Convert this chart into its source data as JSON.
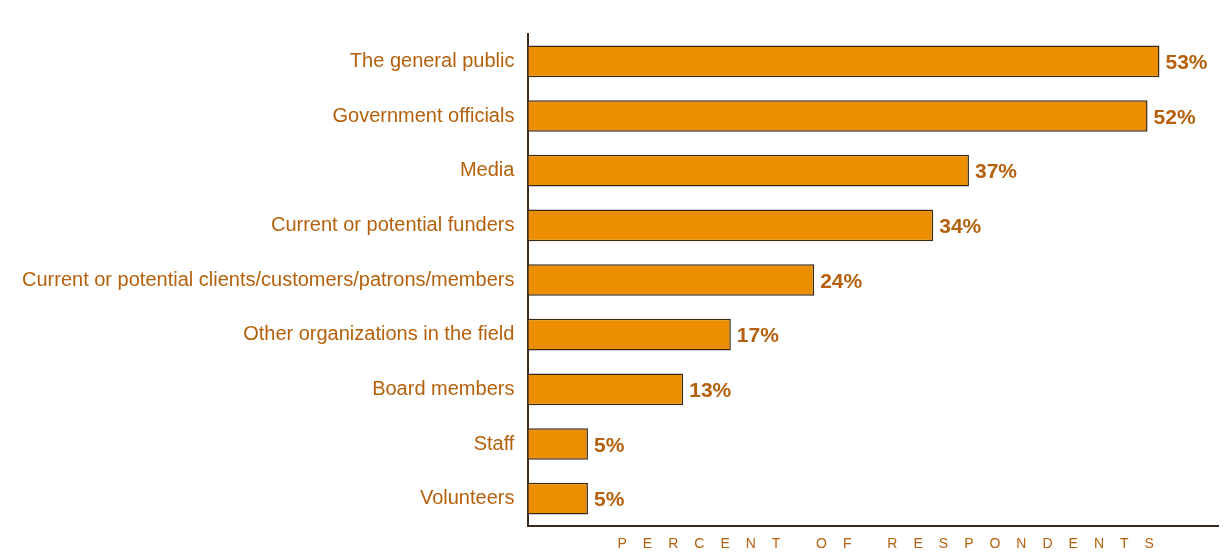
{
  "chart_data": {
    "type": "bar",
    "orientation": "horizontal",
    "xlabel": "PERCENT OF RESPONDENTS",
    "categories": [
      "The general public",
      "Government officials",
      "Media",
      "Current or potential funders",
      "Current or potential clients/customers/patrons/members",
      "Other organizations in the field",
      "Board members",
      "Staff",
      "Volunteers"
    ],
    "values": [
      53,
      52,
      37,
      34,
      24,
      17,
      13,
      5,
      5
    ],
    "value_labels": [
      "53%",
      "52%",
      "37%",
      "34%",
      "24%",
      "17%",
      "13%",
      "5%",
      "5%"
    ],
    "color": "#eb8f00",
    "xlim": [
      0,
      58
    ],
    "tick_labels": "y",
    "grid": false,
    "legend": false
  }
}
